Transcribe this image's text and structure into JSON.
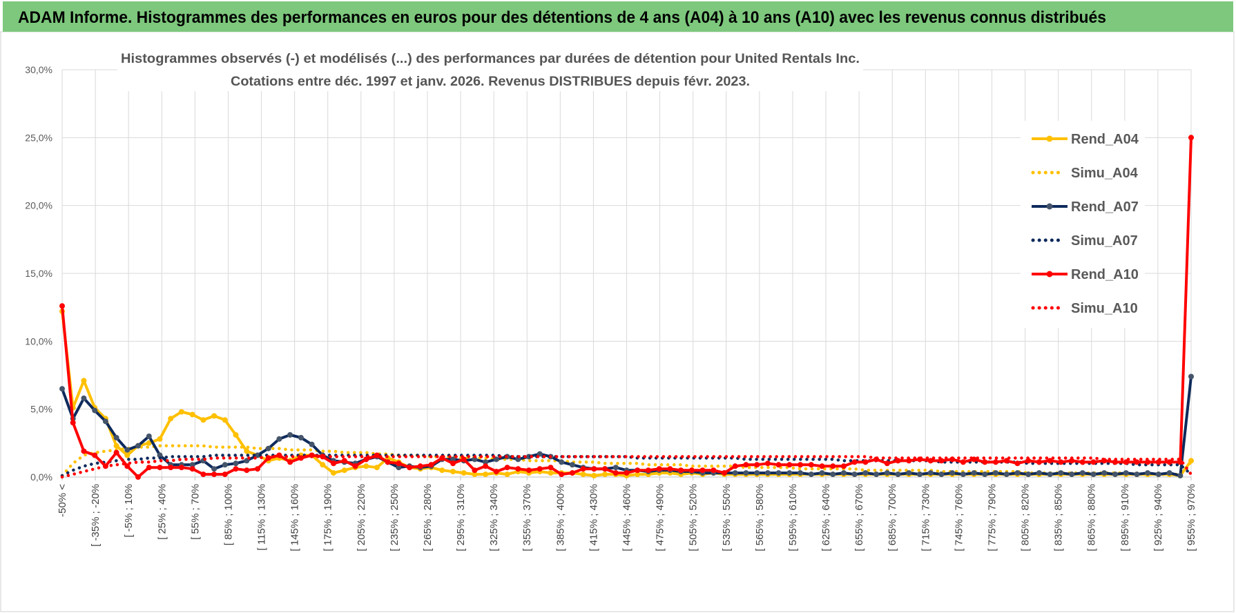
{
  "banner": {
    "title": "ADAM Informe. Histogrammes des performances en euros pour des détentions de 4 ans (A04) à 10 ans (A10) avec les revenus connus distribués"
  },
  "colors": {
    "banner_bg": "#7dc87d",
    "A04": "#ffc000",
    "A07": "#0e2a5c",
    "A10": "#ff0000",
    "marker_A07": "#44546a",
    "grid": "#d9d9d9"
  },
  "chart_data": {
    "type": "line",
    "title": "Histogrammes observés (-) et modélisés (...) des performances par durées de détention pour United Rentals Inc.",
    "subtitle": "Cotations entre déc. 1997 et janv. 2026.  Revenus DISTRIBUES depuis févr.  2023.",
    "xlabel": "",
    "ylabel": "",
    "ylim": [
      0,
      30
    ],
    "yticks": [
      "0,0%",
      "5,0%",
      "10,0%",
      "15,0%",
      "20,0%",
      "25,0%",
      "30,0%"
    ],
    "grid": true,
    "legend_position": "right",
    "x_labels": [
      "-50% <",
      "[ -35% ; -20%",
      "[ -5% ; 10%",
      "[ 25% ; 40%",
      "[ 55% ; 70%",
      "[ 85% ; 100%",
      "[ 115% ; 130%",
      "[ 145% ; 160%",
      "[ 175% ; 190%",
      "[ 205% ; 220%",
      "[ 235% ; 250%",
      "[ 265% ; 280%",
      "[ 295% ; 310%",
      "[ 325% ; 340%",
      "[ 355% ; 370%",
      "[ 385% ; 400%",
      "[ 415% ; 430%",
      "[ 445% ; 460%",
      "[ 475% ; 490%",
      "[ 505% ; 520%",
      "[ 535% ; 550%",
      "[ 565% ; 580%",
      "[ 595% ; 610%",
      "[ 625% ; 640%",
      "[ 655% ; 670%",
      "[ 685% ; 700%",
      "[ 715% ; 730%",
      "[ 745% ; 760%",
      "[ 775% ; 790%",
      "[ 805% ; 820%",
      "[ 835% ; 850%",
      "[ 865% ; 880%",
      "[ 895% ; 910%",
      "[ 925% ; 940%",
      "[ 955% ; 970%"
    ],
    "series": [
      {
        "name": "Rend_A04",
        "style": "solid",
        "color": "#ffc000",
        "values": [
          12.2,
          5.1,
          7.1,
          5.1,
          4.3,
          2.3,
          1.6,
          2.3,
          2.5,
          2.8,
          4.3,
          4.8,
          4.6,
          4.2,
          4.5,
          4.2,
          3.1,
          1.9,
          1.6,
          1.2,
          1.4,
          1.2,
          1.6,
          1.6,
          0.9,
          0.3,
          0.5,
          0.7,
          0.8,
          0.7,
          1.4,
          1.1,
          0.7,
          0.6,
          0.7,
          0.5,
          0.4,
          0.3,
          0.2,
          0.2,
          0.3,
          0.2,
          0.4,
          0.3,
          0.4,
          0.3,
          0.3,
          0.3,
          0.2,
          0.1,
          0.2,
          0.2,
          0.1,
          0.2,
          0.2,
          0.3,
          0.3,
          0.2,
          0.3,
          0.2,
          0.3,
          0.2,
          0.2,
          0.2,
          0.2,
          0.2,
          0.2,
          0.2,
          0.2,
          0.2,
          0.2,
          0.2,
          0.2,
          0.2,
          0.2,
          0.2,
          0.2,
          0.2,
          0.2,
          0.2,
          0.2,
          0.2,
          0.2,
          0.2,
          0.2,
          0.2,
          0.2,
          0.2,
          0.2,
          0.2,
          0.2,
          0.2,
          0.2,
          0.2,
          0.2,
          0.2,
          0.2,
          0.2,
          0.2,
          0.2,
          0.2,
          0.2,
          0.2,
          0.1,
          1.2
        ]
      },
      {
        "name": "Simu_A04",
        "style": "dotted",
        "color": "#ffc000",
        "values": [
          0.1,
          1.0,
          1.6,
          1.8,
          1.9,
          2.0,
          2.1,
          2.2,
          2.2,
          2.3,
          2.3,
          2.3,
          2.3,
          2.3,
          2.2,
          2.2,
          2.2,
          2.2,
          2.1,
          2.1,
          2.1,
          2.0,
          2.0,
          2.0,
          1.9,
          1.9,
          1.8,
          1.8,
          1.8,
          1.7,
          1.7,
          1.6,
          1.6,
          1.6,
          1.5,
          1.5,
          1.5,
          1.4,
          1.4,
          1.4,
          1.3,
          1.3,
          1.3,
          1.2,
          1.2,
          1.2,
          1.2,
          1.1,
          1.1,
          1.1,
          1.0,
          1.0,
          1.0,
          1.0,
          0.9,
          0.9,
          0.9,
          0.9,
          0.8,
          0.8,
          0.8,
          0.8,
          0.8,
          0.7,
          0.7,
          0.7,
          0.7,
          0.7,
          0.6,
          0.6,
          0.6,
          0.6,
          0.6,
          0.6,
          0.5,
          0.5,
          0.5,
          0.5,
          0.5,
          0.5,
          0.5,
          0.4,
          0.4,
          0.4,
          0.4,
          0.4,
          0.4,
          0.4,
          0.4,
          0.3,
          0.3,
          0.3,
          0.3,
          0.3,
          0.3,
          0.3,
          0.3,
          0.3,
          0.3,
          0.2,
          0.2,
          0.2,
          0.2,
          0.2,
          1.1
        ]
      },
      {
        "name": "Rend_A07",
        "style": "solid",
        "color": "#0e2a5c",
        "values": [
          6.5,
          4.3,
          5.8,
          4.9,
          4.1,
          2.9,
          2.0,
          2.3,
          3.0,
          1.6,
          0.9,
          0.9,
          0.9,
          1.2,
          0.6,
          0.9,
          1.0,
          1.2,
          1.6,
          2.1,
          2.8,
          3.1,
          2.9,
          2.4,
          1.6,
          1.2,
          1.1,
          1.0,
          1.3,
          1.5,
          1.1,
          0.7,
          0.8,
          0.7,
          0.8,
          1.3,
          1.3,
          1.2,
          1.3,
          1.1,
          1.3,
          1.5,
          1.3,
          1.5,
          1.7,
          1.5,
          1.1,
          0.9,
          0.7,
          0.6,
          0.6,
          0.7,
          0.5,
          0.5,
          0.4,
          0.5,
          0.5,
          0.4,
          0.4,
          0.3,
          0.3,
          0.3,
          0.3,
          0.3,
          0.3,
          0.3,
          0.3,
          0.3,
          0.3,
          0.2,
          0.3,
          0.2,
          0.3,
          0.2,
          0.3,
          0.2,
          0.3,
          0.2,
          0.3,
          0.2,
          0.3,
          0.2,
          0.3,
          0.2,
          0.3,
          0.2,
          0.3,
          0.2,
          0.3,
          0.2,
          0.3,
          0.2,
          0.3,
          0.2,
          0.3,
          0.2,
          0.3,
          0.2,
          0.3,
          0.2,
          0.3,
          0.2,
          0.3,
          0.1,
          7.4
        ]
      },
      {
        "name": "Simu_A07",
        "style": "dotted",
        "color": "#0e2a5c",
        "values": [
          0.1,
          0.5,
          0.8,
          1.0,
          1.1,
          1.2,
          1.3,
          1.3,
          1.4,
          1.4,
          1.5,
          1.5,
          1.5,
          1.5,
          1.6,
          1.6,
          1.6,
          1.6,
          1.6,
          1.6,
          1.6,
          1.6,
          1.6,
          1.6,
          1.6,
          1.6,
          1.6,
          1.6,
          1.6,
          1.6,
          1.6,
          1.6,
          1.6,
          1.6,
          1.6,
          1.6,
          1.6,
          1.6,
          1.6,
          1.6,
          1.6,
          1.5,
          1.5,
          1.5,
          1.5,
          1.5,
          1.5,
          1.5,
          1.5,
          1.5,
          1.5,
          1.5,
          1.5,
          1.4,
          1.4,
          1.4,
          1.4,
          1.4,
          1.4,
          1.4,
          1.4,
          1.4,
          1.4,
          1.3,
          1.3,
          1.3,
          1.3,
          1.3,
          1.3,
          1.3,
          1.3,
          1.3,
          1.2,
          1.2,
          1.2,
          1.2,
          1.2,
          1.2,
          1.2,
          1.2,
          1.2,
          1.1,
          1.1,
          1.1,
          1.1,
          1.1,
          1.1,
          1.1,
          1.1,
          1.0,
          1.0,
          1.0,
          1.0,
          1.0,
          1.0,
          1.0,
          1.0,
          1.0,
          1.0,
          0.9,
          0.9,
          0.9,
          0.9,
          0.9,
          0.2
        ]
      },
      {
        "name": "Rend_A10",
        "style": "solid",
        "color": "#ff0000",
        "values": [
          12.6,
          4.0,
          1.9,
          1.6,
          0.8,
          1.8,
          0.8,
          0.0,
          0.7,
          0.7,
          0.7,
          0.7,
          0.6,
          0.2,
          0.2,
          0.2,
          0.6,
          0.5,
          0.6,
          1.4,
          1.6,
          1.1,
          1.4,
          1.6,
          1.5,
          1.0,
          1.2,
          0.8,
          1.3,
          1.6,
          1.1,
          1.0,
          0.7,
          0.8,
          0.9,
          1.4,
          1.0,
          1.3,
          0.5,
          0.8,
          0.4,
          0.7,
          0.6,
          0.5,
          0.6,
          0.7,
          0.2,
          0.3,
          0.6,
          0.6,
          0.6,
          0.3,
          0.3,
          0.5,
          0.5,
          0.6,
          0.6,
          0.5,
          0.5,
          0.5,
          0.5,
          0.3,
          0.8,
          0.9,
          0.9,
          1.0,
          0.9,
          0.9,
          0.9,
          0.9,
          0.8,
          0.8,
          0.8,
          1.1,
          1.1,
          1.3,
          1.0,
          1.2,
          1.2,
          1.3,
          1.2,
          1.2,
          1.3,
          1.1,
          1.3,
          1.1,
          1.1,
          1.2,
          1.0,
          1.2,
          1.1,
          1.2,
          1.1,
          1.2,
          1.1,
          1.1,
          1.2,
          1.1,
          1.1,
          1.1,
          1.1,
          1.1,
          1.1,
          1.1,
          25.0
        ]
      },
      {
        "name": "Simu_A10",
        "style": "dotted",
        "color": "#ff0000",
        "values": [
          0.0,
          0.2,
          0.4,
          0.6,
          0.8,
          0.9,
          1.0,
          1.1,
          1.1,
          1.2,
          1.2,
          1.3,
          1.3,
          1.3,
          1.4,
          1.4,
          1.4,
          1.4,
          1.4,
          1.5,
          1.5,
          1.5,
          1.5,
          1.5,
          1.5,
          1.5,
          1.5,
          1.5,
          1.5,
          1.5,
          1.5,
          1.5,
          1.5,
          1.5,
          1.5,
          1.5,
          1.5,
          1.5,
          1.5,
          1.5,
          1.5,
          1.5,
          1.5,
          1.5,
          1.5,
          1.5,
          1.5,
          1.5,
          1.5,
          1.5,
          1.5,
          1.5,
          1.5,
          1.5,
          1.5,
          1.5,
          1.5,
          1.5,
          1.5,
          1.5,
          1.5,
          1.5,
          1.5,
          1.5,
          1.5,
          1.5,
          1.5,
          1.5,
          1.5,
          1.5,
          1.5,
          1.5,
          1.5,
          1.5,
          1.5,
          1.4,
          1.4,
          1.4,
          1.4,
          1.4,
          1.4,
          1.4,
          1.4,
          1.4,
          1.4,
          1.4,
          1.4,
          1.4,
          1.4,
          1.4,
          1.4,
          1.4,
          1.4,
          1.4,
          1.4,
          1.4,
          1.3,
          1.3,
          1.3,
          1.3,
          1.3,
          1.3,
          1.3,
          1.3,
          0.2
        ]
      }
    ]
  }
}
